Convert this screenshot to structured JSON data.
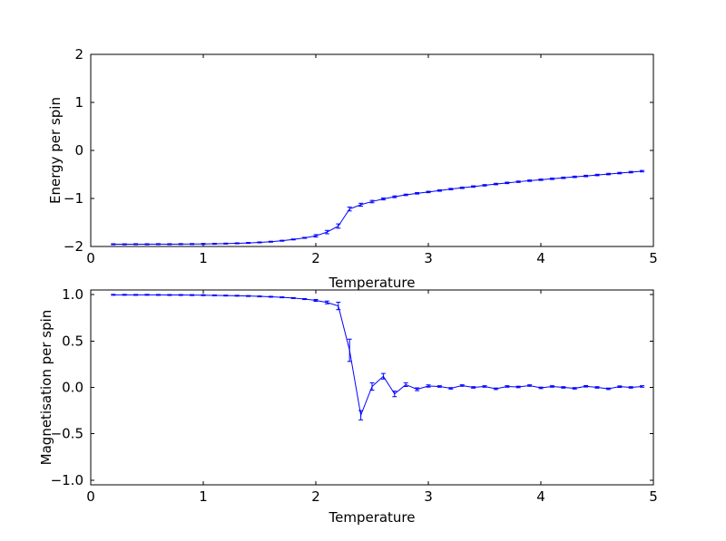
{
  "figure": {
    "background": "#ffffff",
    "line_color": "#0000ff",
    "axis_color": "#000000"
  },
  "chart_data": [
    {
      "type": "line",
      "title": "",
      "xlabel": "Temperature",
      "ylabel": "Energy per spin",
      "xlim": [
        0,
        5
      ],
      "ylim": [
        -2,
        2
      ],
      "xticks": [
        0,
        1,
        2,
        3,
        4,
        5
      ],
      "xtick_labels": [
        "0",
        "1",
        "2",
        "3",
        "4",
        "5"
      ],
      "yticks": [
        -2,
        -1,
        0,
        1,
        2
      ],
      "ytick_labels": [
        "−2",
        "−1",
        "0",
        "1",
        "2"
      ],
      "grid": false,
      "legend": "none",
      "x": [
        0.2,
        0.3,
        0.4,
        0.5,
        0.6,
        0.7,
        0.8,
        0.9,
        1.0,
        1.1,
        1.2,
        1.3,
        1.4,
        1.5,
        1.6,
        1.7,
        1.8,
        1.9,
        2.0,
        2.1,
        2.2,
        2.3,
        2.4,
        2.5,
        2.6,
        2.7,
        2.8,
        2.9,
        3.0,
        3.1,
        3.2,
        3.3,
        3.4,
        3.5,
        3.6,
        3.7,
        3.8,
        3.9,
        4.0,
        4.1,
        4.2,
        4.3,
        4.4,
        4.5,
        4.6,
        4.7,
        4.8,
        4.9
      ],
      "y": [
        -1.953,
        -1.954,
        -1.952,
        -1.953,
        -1.951,
        -1.952,
        -1.95,
        -1.949,
        -1.947,
        -1.944,
        -1.94,
        -1.934,
        -1.926,
        -1.915,
        -1.901,
        -1.88,
        -1.853,
        -1.82,
        -1.778,
        -1.7,
        -1.575,
        -1.22,
        -1.13,
        -1.065,
        -1.01,
        -0.965,
        -0.925,
        -0.893,
        -0.865,
        -0.835,
        -0.805,
        -0.778,
        -0.752,
        -0.726,
        -0.7,
        -0.676,
        -0.652,
        -0.63,
        -0.61,
        -0.59,
        -0.57,
        -0.55,
        -0.532,
        -0.512,
        -0.492,
        -0.472,
        -0.452,
        -0.432
      ],
      "yerr": [
        0.01,
        0.01,
        0.01,
        0.01,
        0.01,
        0.01,
        0.01,
        0.01,
        0.01,
        0.01,
        0.01,
        0.01,
        0.01,
        0.01,
        0.01,
        0.01,
        0.01,
        0.01,
        0.025,
        0.035,
        0.045,
        0.04,
        0.03,
        0.025,
        0.02,
        0.018,
        0.015,
        0.015,
        0.015,
        0.015,
        0.015,
        0.015,
        0.015,
        0.015,
        0.015,
        0.015,
        0.015,
        0.015,
        0.015,
        0.015,
        0.015,
        0.015,
        0.015,
        0.015,
        0.015,
        0.015,
        0.015,
        0.015
      ]
    },
    {
      "type": "line",
      "title": "",
      "xlabel": "Temperature",
      "ylabel": "Magnetisation per spin",
      "xlim": [
        0,
        5
      ],
      "ylim": [
        -1.05,
        1.05
      ],
      "xticks": [
        0,
        1,
        2,
        3,
        4,
        5
      ],
      "xtick_labels": [
        "0",
        "1",
        "2",
        "3",
        "4",
        "5"
      ],
      "yticks": [
        -1.0,
        -0.5,
        0.0,
        0.5,
        1.0
      ],
      "ytick_labels": [
        "−1.0",
        "−0.5",
        "0.0",
        "0.5",
        "1.0"
      ],
      "grid": false,
      "legend": "none",
      "x": [
        0.2,
        0.3,
        0.4,
        0.5,
        0.6,
        0.7,
        0.8,
        0.9,
        1.0,
        1.1,
        1.2,
        1.3,
        1.4,
        1.5,
        1.6,
        1.7,
        1.8,
        1.9,
        2.0,
        2.1,
        2.2,
        2.3,
        2.4,
        2.5,
        2.6,
        2.7,
        2.8,
        2.9,
        3.0,
        3.1,
        3.2,
        3.3,
        3.4,
        3.5,
        3.6,
        3.7,
        3.8,
        3.9,
        4.0,
        4.1,
        4.2,
        4.3,
        4.4,
        4.5,
        4.6,
        4.7,
        4.8,
        4.9
      ],
      "y": [
        0.998,
        0.998,
        0.997,
        0.998,
        0.997,
        0.996,
        0.996,
        0.995,
        0.994,
        0.992,
        0.99,
        0.988,
        0.985,
        0.981,
        0.977,
        0.971,
        0.963,
        0.952,
        0.938,
        0.916,
        0.878,
        0.4,
        -0.3,
        0.01,
        0.12,
        -0.07,
        0.03,
        -0.02,
        0.015,
        0.01,
        -0.01,
        0.02,
        0.0,
        0.01,
        -0.015,
        0.01,
        0.005,
        0.02,
        -0.005,
        0.01,
        0.0,
        -0.01,
        0.012,
        0.0,
        -0.015,
        0.008,
        0.0,
        0.01
      ],
      "yerr": [
        0.005,
        0.005,
        0.005,
        0.005,
        0.005,
        0.005,
        0.005,
        0.005,
        0.005,
        0.005,
        0.005,
        0.005,
        0.005,
        0.005,
        0.005,
        0.005,
        0.005,
        0.005,
        0.01,
        0.015,
        0.04,
        0.12,
        0.05,
        0.04,
        0.03,
        0.03,
        0.02,
        0.015,
        0.012,
        0.008,
        0.008,
        0.008,
        0.008,
        0.008,
        0.008,
        0.008,
        0.008,
        0.008,
        0.008,
        0.008,
        0.008,
        0.008,
        0.008,
        0.008,
        0.008,
        0.008,
        0.008,
        0.008
      ]
    }
  ]
}
